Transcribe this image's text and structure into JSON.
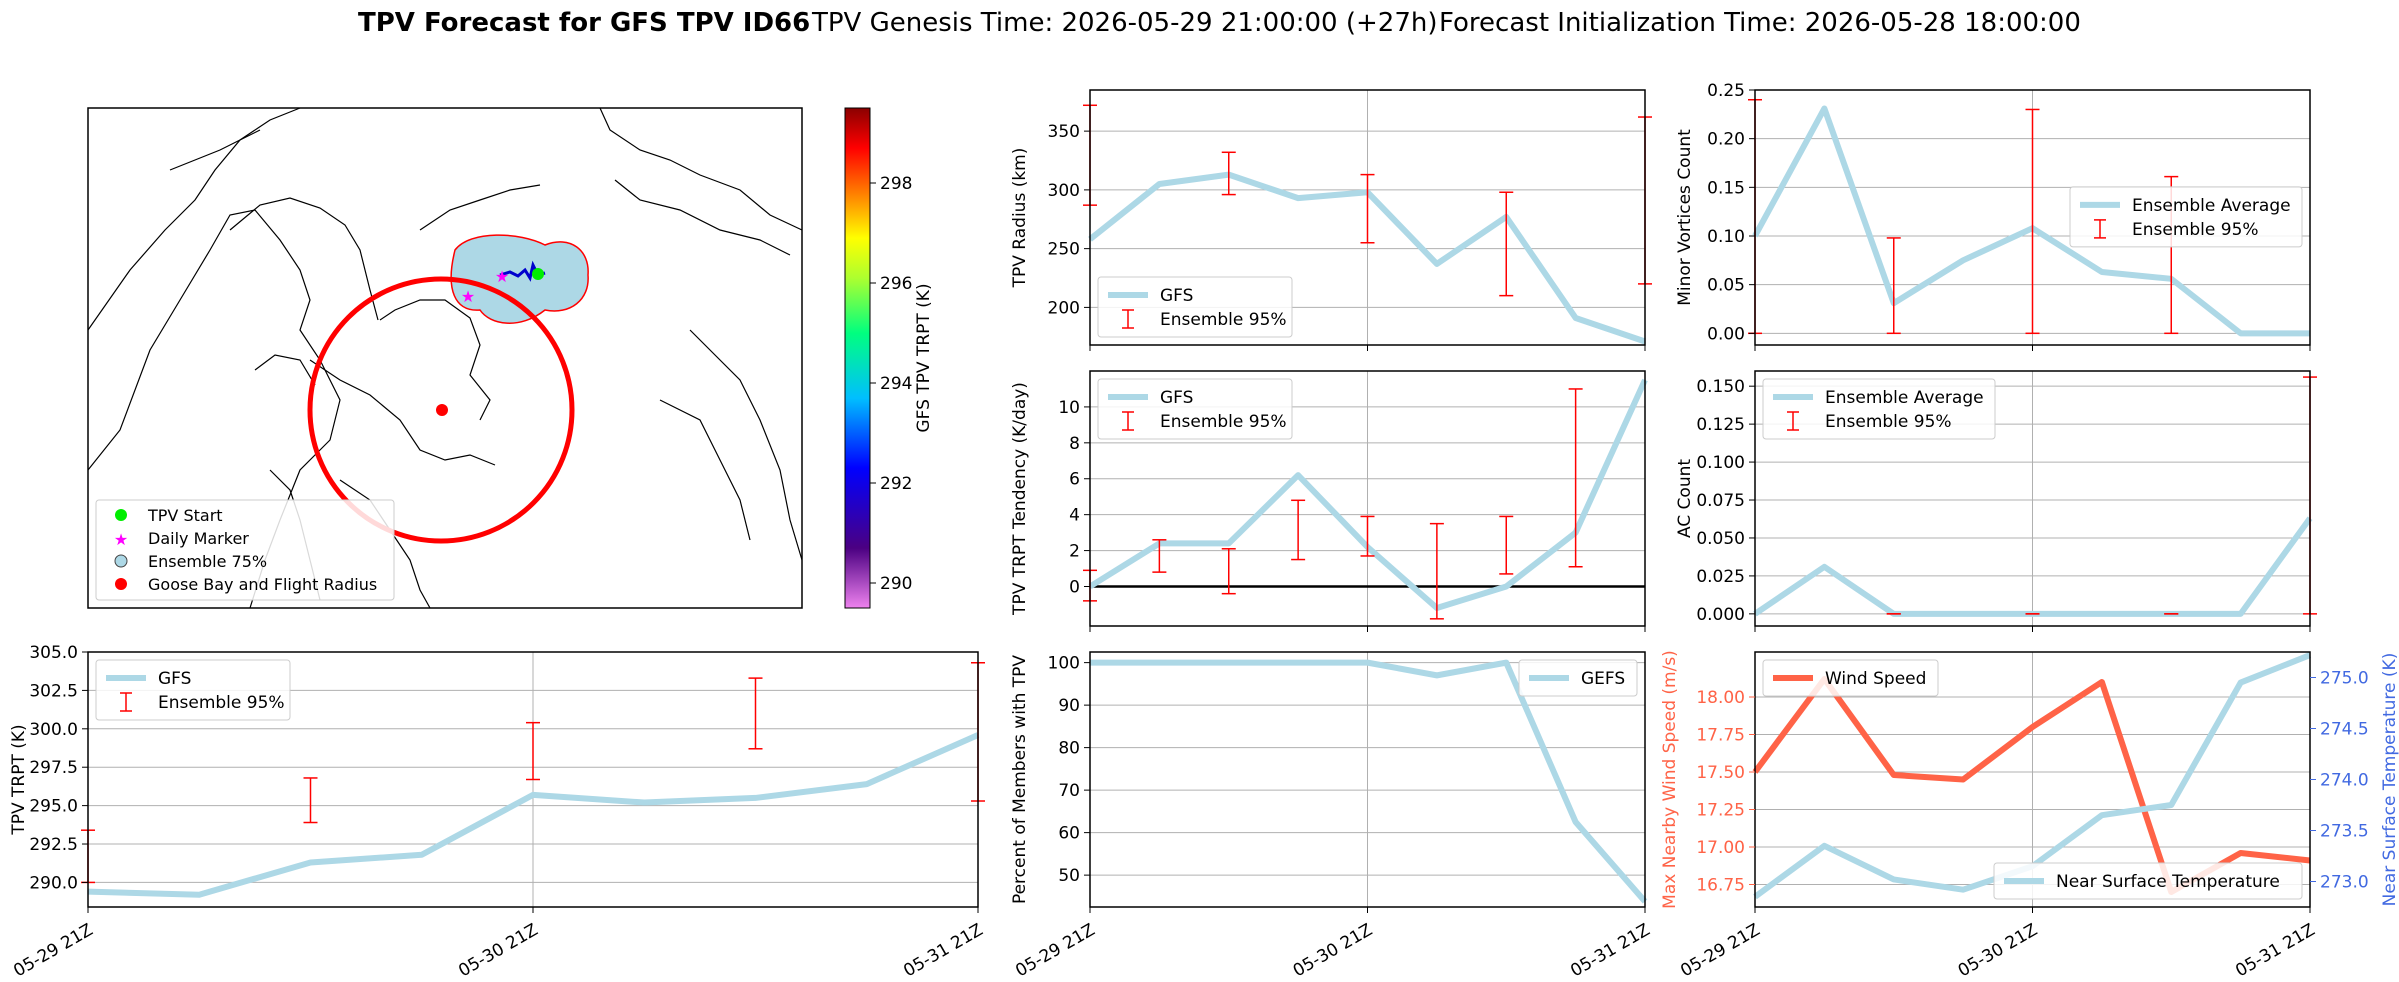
{
  "title": {
    "bold": "TPV Forecast for GFS TPV ID66",
    "genesis": "TPV Genesis Time: 2026-05-29 21:00:00 (+27h)",
    "init": "Forecast Initialization Time: 2026-05-28 18:00:00"
  },
  "colors": {
    "gfs_line": "#add8e6",
    "errorbar": "#ff0000",
    "wind_line": "#ff6347",
    "temp_axis": "#4169e1",
    "zero_line": "#000000"
  },
  "map": {
    "legend": [
      "TPV Start",
      "Daily Marker",
      "Ensemble 75%",
      "Goose Bay and Flight Radius"
    ],
    "colorbar_label": "GFS TPV TRPT (K)",
    "colorbar_ticks": [
      290,
      292,
      294,
      296,
      298
    ],
    "colorbar_range": [
      289.5,
      299.5
    ]
  },
  "chart_data": [
    {
      "id": "trpt",
      "type": "line",
      "ylabel": "TPV TRPT (K)",
      "ylim": [
        288.4,
        305.0
      ],
      "yticks": [
        290.0,
        292.5,
        295.0,
        297.5,
        300.0,
        302.5,
        305.0
      ],
      "xticklabels": [
        "05-29 21Z",
        "05-30 21Z",
        "05-31 21Z"
      ],
      "xlim": [
        0,
        8
      ],
      "legend": [
        "GFS",
        "Ensemble 95%"
      ],
      "series": [
        {
          "name": "GFS",
          "x": [
            0,
            1,
            2,
            3,
            4,
            5,
            6,
            7,
            8
          ],
          "values": [
            289.4,
            289.2,
            291.3,
            291.8,
            295.7,
            295.2,
            295.5,
            296.4,
            299.6
          ]
        }
      ],
      "errorbars": [
        {
          "x": 0,
          "low": 290.0,
          "high": 293.4
        },
        {
          "x": 2,
          "low": 293.9,
          "high": 296.8
        },
        {
          "x": 4,
          "low": 296.7,
          "high": 300.4
        },
        {
          "x": 6,
          "low": 298.7,
          "high": 303.3
        },
        {
          "x": 8,
          "low": 295.3,
          "high": 304.3
        }
      ]
    },
    {
      "id": "radius",
      "type": "line",
      "ylabel": "TPV Radius (km)",
      "ylim": [
        168,
        385
      ],
      "yticks": [
        200,
        250,
        300,
        350
      ],
      "xlim": [
        0,
        8
      ],
      "legend": [
        "GFS",
        "Ensemble 95%"
      ],
      "series": [
        {
          "name": "GFS",
          "x": [
            0,
            1,
            2,
            3,
            4,
            5,
            6,
            7,
            8
          ],
          "values": [
            258,
            305,
            313,
            293,
            298,
            237,
            277,
            191,
            171
          ]
        }
      ],
      "errorbars": [
        {
          "x": 0,
          "low": 287,
          "high": 372
        },
        {
          "x": 2,
          "low": 296,
          "high": 332
        },
        {
          "x": 4,
          "low": 255,
          "high": 313
        },
        {
          "x": 6,
          "low": 210,
          "high": 298
        },
        {
          "x": 8,
          "low": 220,
          "high": 362
        }
      ]
    },
    {
      "id": "tendency",
      "type": "line",
      "ylabel": "TPV TRPT Tendency (K/day)",
      "ylim": [
        -2.2,
        12.0
      ],
      "yticks": [
        0,
        2,
        4,
        6,
        8,
        10
      ],
      "xlim": [
        0,
        8
      ],
      "legend": [
        "GFS",
        "Ensemble 95%"
      ],
      "zero_line": 0,
      "series": [
        {
          "name": "GFS",
          "x": [
            0,
            1,
            2,
            3,
            4,
            5,
            6,
            7,
            8
          ],
          "values": [
            0.0,
            2.4,
            2.4,
            6.2,
            2.2,
            -1.2,
            0.0,
            3.0,
            11.5
          ]
        }
      ],
      "errorbars": [
        {
          "x": 0,
          "low": -0.8,
          "high": 0.9
        },
        {
          "x": 1,
          "low": 0.8,
          "high": 2.6
        },
        {
          "x": 2,
          "low": -0.4,
          "high": 2.1
        },
        {
          "x": 3,
          "low": 1.5,
          "high": 4.8
        },
        {
          "x": 4,
          "low": 1.7,
          "high": 3.9
        },
        {
          "x": 5,
          "low": -1.8,
          "high": 3.5
        },
        {
          "x": 6,
          "low": 0.7,
          "high": 3.9
        },
        {
          "x": 7,
          "low": 1.1,
          "high": 11.0
        }
      ]
    },
    {
      "id": "members",
      "type": "line",
      "ylabel": "Percent of Members with TPV",
      "ylim": [
        42.5,
        102.5
      ],
      "yticks": [
        50,
        60,
        70,
        80,
        90,
        100
      ],
      "xticklabels": [
        "05-29 21Z",
        "05-30 21Z",
        "05-31 21Z"
      ],
      "xlim": [
        0,
        8
      ],
      "legend": [
        "GEFS"
      ],
      "series": [
        {
          "name": "GEFS",
          "x": [
            0,
            1,
            2,
            3,
            4,
            5,
            6,
            7,
            8
          ],
          "values": [
            100,
            100,
            100,
            100,
            100,
            97,
            100,
            62.5,
            43.8
          ]
        }
      ]
    },
    {
      "id": "minor",
      "type": "line",
      "ylabel": "Minor Vortices Count",
      "ylim": [
        -0.012,
        0.25
      ],
      "yticks": [
        0.0,
        0.05,
        0.1,
        0.15,
        0.2,
        0.25
      ],
      "xlim": [
        0,
        8
      ],
      "legend": [
        "Ensemble Average",
        "Ensemble 95%"
      ],
      "series": [
        {
          "name": "Ensemble Average",
          "x": [
            0,
            1,
            2,
            3,
            4,
            5,
            6,
            7,
            8
          ],
          "values": [
            0.1,
            0.231,
            0.031,
            0.075,
            0.108,
            0.063,
            0.056,
            0.0,
            0.0
          ]
        }
      ],
      "errorbars": [
        {
          "x": 0,
          "low": 0.0,
          "high": 0.24
        },
        {
          "x": 2,
          "low": 0.0,
          "high": 0.098
        },
        {
          "x": 4,
          "low": 0.0,
          "high": 0.23
        },
        {
          "x": 6,
          "low": 0.0,
          "high": 0.161
        }
      ]
    },
    {
      "id": "ac",
      "type": "line",
      "ylabel": "AC Count",
      "ylim": [
        -0.008,
        0.16
      ],
      "yticks": [
        0.0,
        0.025,
        0.05,
        0.075,
        0.1,
        0.125,
        0.15
      ],
      "xlim": [
        0,
        8
      ],
      "legend": [
        "Ensemble Average",
        "Ensemble 95%"
      ],
      "series": [
        {
          "name": "Ensemble Average",
          "x": [
            0,
            1,
            2,
            3,
            4,
            5,
            6,
            7,
            8
          ],
          "values": [
            0.0,
            0.031,
            0.0,
            0.0,
            0.0,
            0.0,
            0.0,
            0.0,
            0.063
          ]
        }
      ],
      "errorbars": [
        {
          "x": 2,
          "low": 0.0,
          "high": 0.0
        },
        {
          "x": 4,
          "low": 0.0,
          "high": 0.0
        },
        {
          "x": 6,
          "low": 0.0,
          "high": 0.0
        },
        {
          "x": 8,
          "low": 0.0,
          "high": 0.156
        }
      ]
    },
    {
      "id": "wind",
      "type": "line",
      "ylabel": "Max Nearby Wind Speed (m/s)",
      "ylabel_right": "Near Surface Temperature (K)",
      "ylim": [
        16.6,
        18.3
      ],
      "yticks": [
        16.75,
        17.0,
        17.25,
        17.5,
        17.75,
        18.0
      ],
      "ylim_right": [
        272.75,
        275.25
      ],
      "yticks_right": [
        273.0,
        273.5,
        274.0,
        274.5,
        275.0
      ],
      "xticklabels": [
        "05-29 21Z",
        "05-30 21Z",
        "05-31 21Z"
      ],
      "xlim": [
        0,
        8
      ],
      "legend": [
        "Wind Speed"
      ],
      "legend_right": [
        "Near Surface Temperature"
      ],
      "series": [
        {
          "name": "Wind Speed",
          "x": [
            0,
            1,
            2,
            3,
            4,
            5,
            6,
            7,
            8
          ],
          "values": [
            17.5,
            18.12,
            17.48,
            17.45,
            17.8,
            18.1,
            16.7,
            16.96,
            16.91
          ]
        },
        {
          "name": "Near Surface Temperature",
          "axis": "right",
          "x": [
            0,
            1,
            2,
            3,
            4,
            5,
            6,
            7,
            8
          ],
          "values": [
            272.85,
            273.35,
            273.02,
            272.92,
            273.15,
            273.65,
            273.75,
            274.95,
            275.22
          ]
        }
      ]
    }
  ]
}
